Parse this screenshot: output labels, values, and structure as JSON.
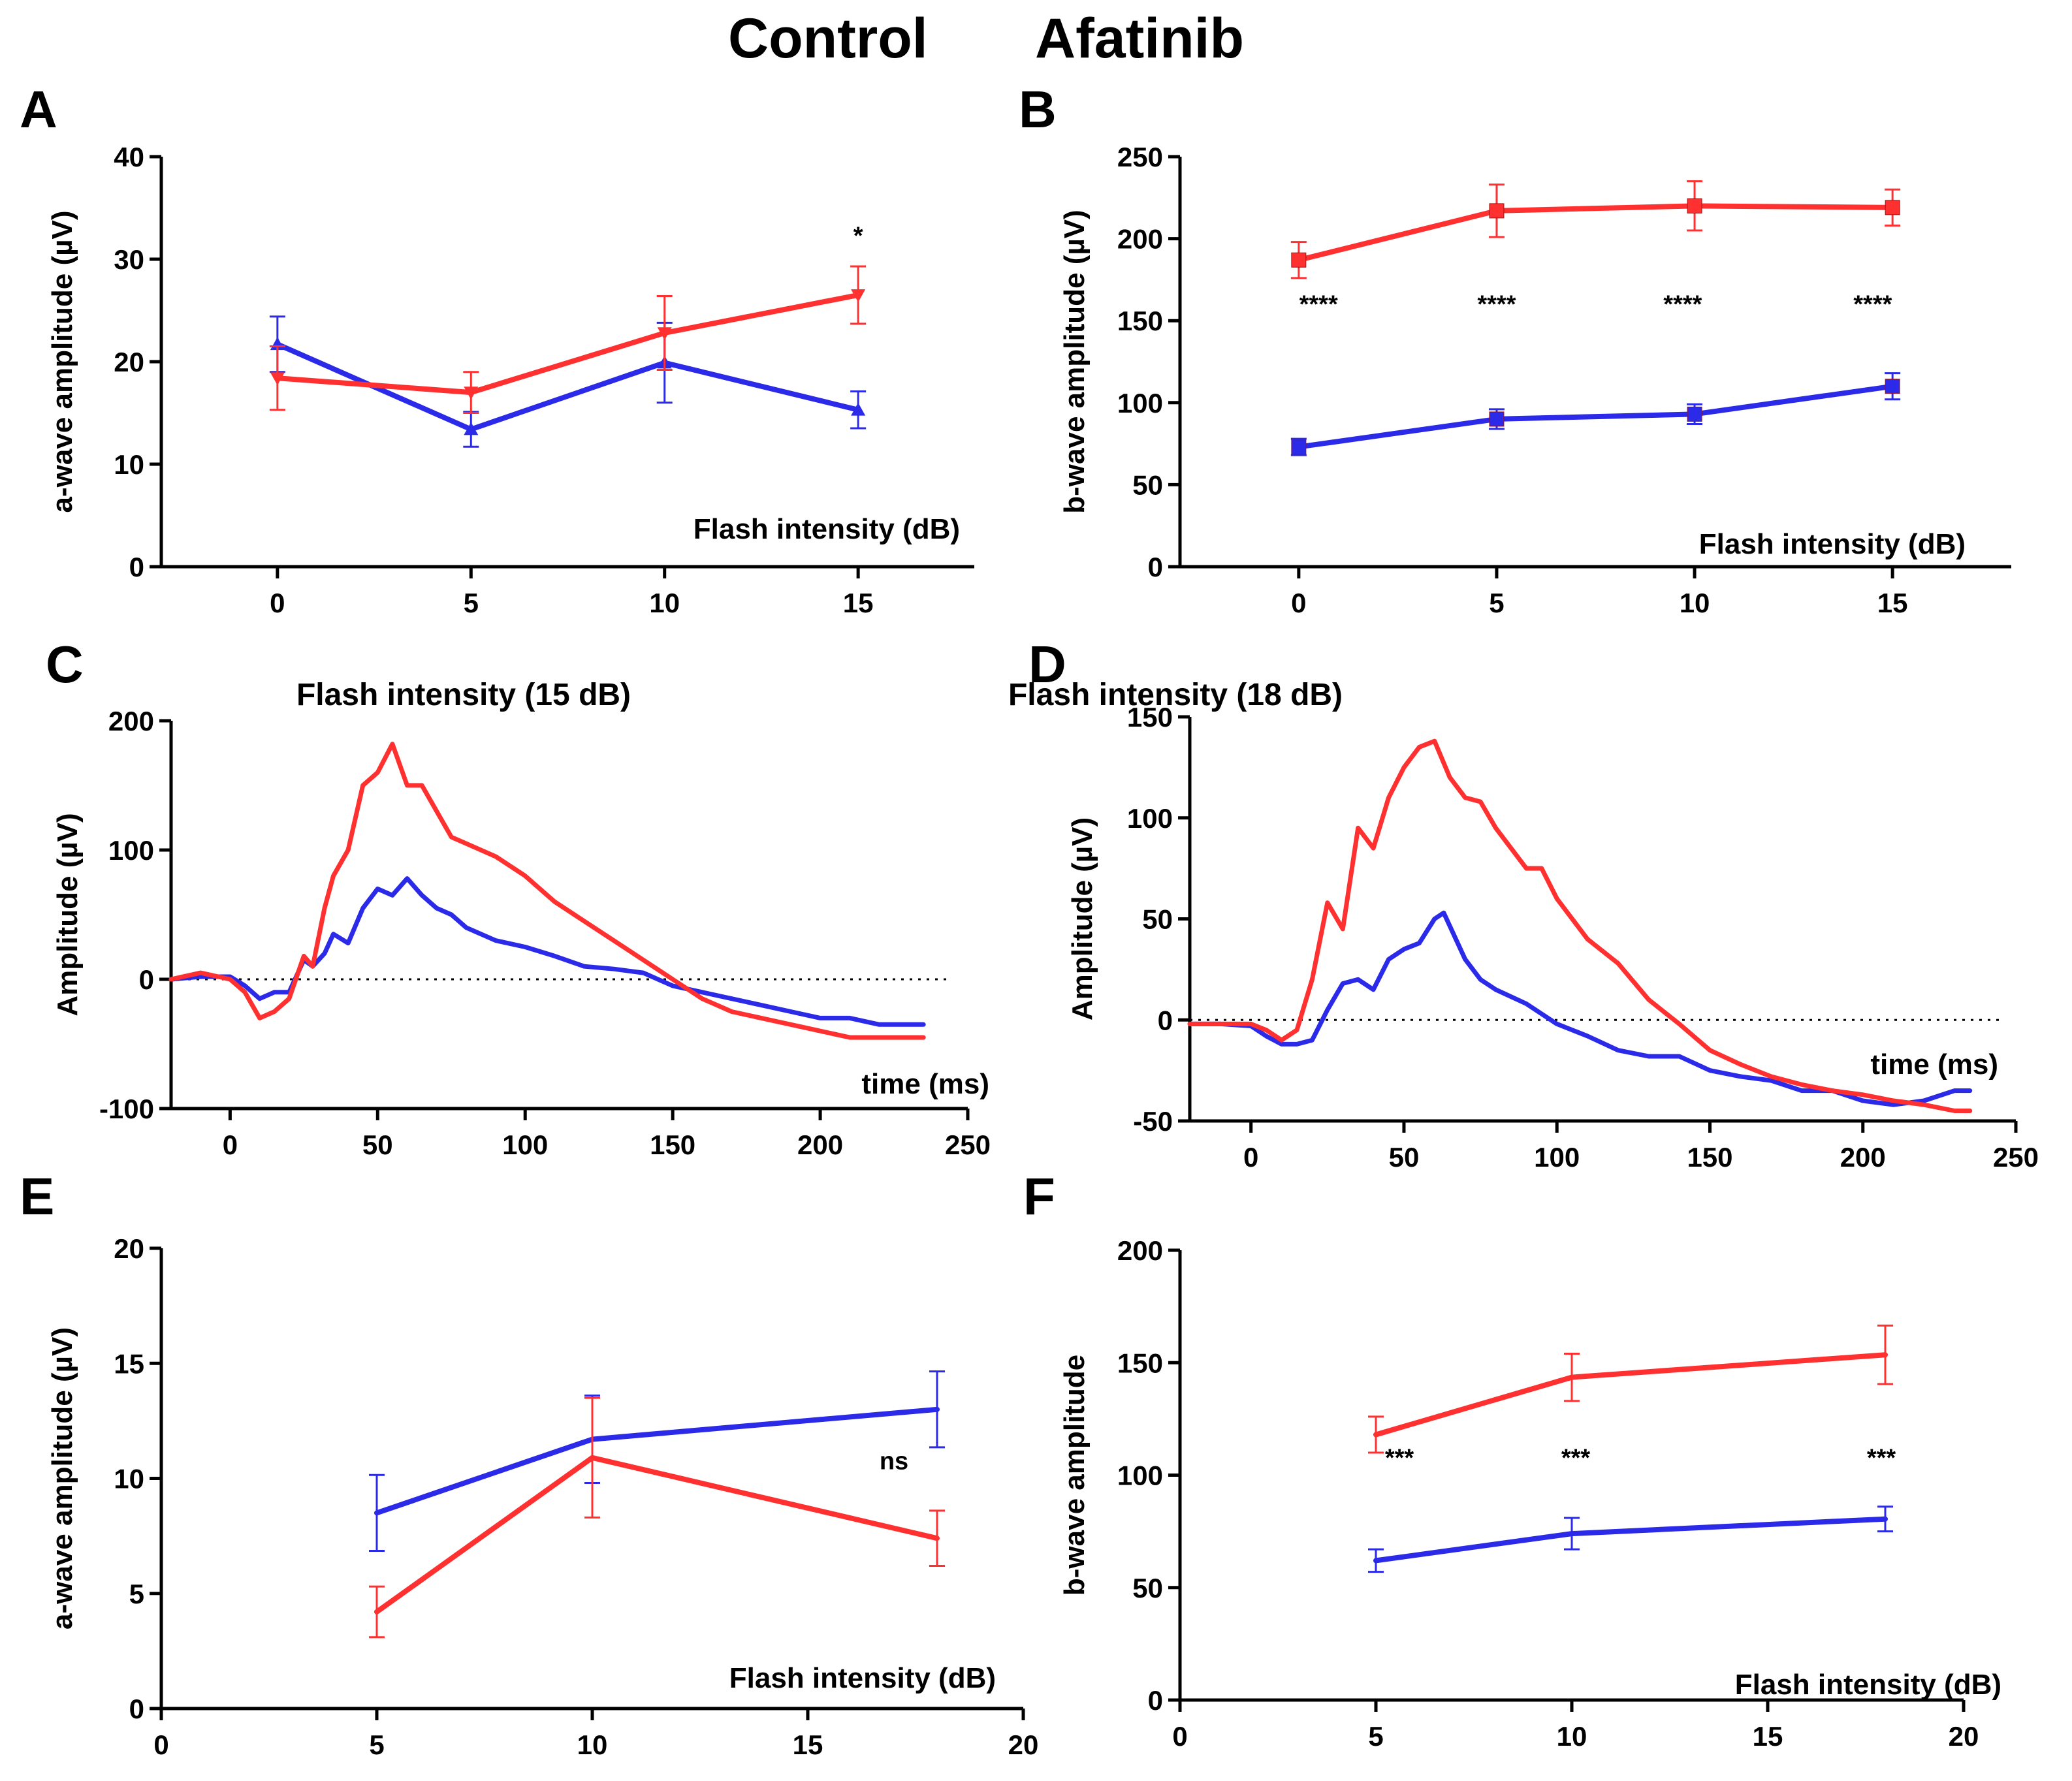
{
  "legend": {
    "control": "Control",
    "afatinib": "Afatinib"
  },
  "colors": {
    "control": "#2a2ae8",
    "afatinib": "#ff3030",
    "axis": "#000000"
  },
  "chart_data": [
    {
      "id": "A",
      "type": "line",
      "panel_label": "A",
      "title": "",
      "xlabel": "Flash intensity (dB)",
      "ylabel": "a-wave amplitude (µV)",
      "xlim": [
        -3,
        18
      ],
      "ylim": [
        0,
        40
      ],
      "xticks": [
        0,
        5,
        10,
        15
      ],
      "yticks": [
        0,
        10,
        20,
        30,
        40
      ],
      "x": [
        0,
        5,
        10,
        15
      ],
      "series": [
        {
          "name": "Control",
          "marker": "triangle-up",
          "values": [
            21.7,
            13.4,
            19.9,
            15.3
          ],
          "errors": [
            2.7,
            1.7,
            3.9,
            1.8
          ]
        },
        {
          "name": "Afatinib",
          "marker": "triangle-down",
          "values": [
            18.4,
            17.0,
            22.8,
            26.5
          ],
          "errors": [
            3.1,
            2.0,
            3.6,
            2.8
          ]
        }
      ],
      "annotations": [
        {
          "text": "*",
          "x": 15,
          "y": 31.5
        }
      ]
    },
    {
      "id": "B",
      "type": "line",
      "panel_label": "B",
      "title": "",
      "xlabel": "Flash intensity (dB)",
      "ylabel": "b-wave amplitude (µV)",
      "xlim": [
        -3,
        18
      ],
      "ylim": [
        0,
        250
      ],
      "xticks": [
        0,
        5,
        10,
        15
      ],
      "yticks": [
        0,
        50,
        100,
        150,
        200,
        250
      ],
      "x": [
        0,
        5,
        10,
        15
      ],
      "series": [
        {
          "name": "Control",
          "marker": "square",
          "values": [
            73,
            90,
            93,
            110
          ],
          "errors": [
            5,
            6,
            6,
            8
          ]
        },
        {
          "name": "Afatinib",
          "marker": "square",
          "values": [
            187,
            217,
            220,
            219
          ],
          "errors": [
            11,
            16,
            15,
            11
          ]
        }
      ],
      "annotations": [
        {
          "text": "****",
          "x": 0.5,
          "y": 155
        },
        {
          "text": "****",
          "x": 5,
          "y": 155
        },
        {
          "text": "****",
          "x": 9.7,
          "y": 155
        },
        {
          "text": "****",
          "x": 14.5,
          "y": 155
        }
      ]
    },
    {
      "id": "C",
      "type": "line",
      "panel_label": "C",
      "title": "Flash intensity (15 dB)",
      "xlabel": "time (ms)",
      "ylabel": "Amplitude (µV)",
      "xlim": [
        -20,
        250
      ],
      "ylim": [
        -100,
        200
      ],
      "xticks": [
        0,
        50,
        100,
        150,
        200,
        250
      ],
      "yticks": [
        -100,
        0,
        100,
        200
      ],
      "zero_line": true,
      "series": [
        {
          "name": "Control",
          "x": [
            -20,
            -10,
            0,
            5,
            10,
            15,
            20,
            25,
            28,
            32,
            35,
            40,
            45,
            50,
            55,
            60,
            65,
            70,
            75,
            80,
            85,
            90,
            100,
            110,
            120,
            130,
            140,
            150,
            160,
            170,
            180,
            190,
            200,
            210,
            220,
            230,
            235
          ],
          "values": [
            0,
            2,
            2,
            -5,
            -15,
            -10,
            -10,
            15,
            10,
            20,
            35,
            28,
            55,
            70,
            65,
            78,
            65,
            55,
            50,
            40,
            35,
            30,
            25,
            18,
            10,
            8,
            5,
            -5,
            -10,
            -15,
            -20,
            -25,
            -30,
            -30,
            -35,
            -35,
            -35
          ]
        },
        {
          "name": "Afatinib",
          "x": [
            -20,
            -10,
            0,
            5,
            10,
            15,
            20,
            25,
            28,
            32,
            35,
            40,
            45,
            50,
            55,
            60,
            65,
            70,
            75,
            80,
            90,
            100,
            110,
            120,
            130,
            140,
            150,
            160,
            170,
            180,
            190,
            200,
            210,
            220,
            230,
            235
          ],
          "values": [
            0,
            5,
            0,
            -10,
            -30,
            -25,
            -15,
            18,
            10,
            55,
            80,
            100,
            150,
            160,
            182,
            150,
            150,
            130,
            110,
            105,
            95,
            80,
            60,
            45,
            30,
            15,
            0,
            -15,
            -25,
            -30,
            -35,
            -40,
            -45,
            -45,
            -45,
            -45
          ]
        }
      ]
    },
    {
      "id": "D",
      "type": "line",
      "panel_label": "D",
      "title": "Flash intensity (18 dB)",
      "xlabel": "time (ms)",
      "ylabel": "Amplitude (µV)",
      "xlim": [
        -20,
        250
      ],
      "ylim": [
        -50,
        150
      ],
      "xticks": [
        0,
        50,
        100,
        150,
        200,
        250
      ],
      "yticks": [
        -50,
        0,
        50,
        100,
        150
      ],
      "zero_line": true,
      "series": [
        {
          "name": "Control",
          "x": [
            -20,
            -10,
            0,
            5,
            10,
            15,
            20,
            25,
            30,
            35,
            40,
            45,
            50,
            55,
            60,
            63,
            70,
            75,
            80,
            90,
            100,
            110,
            120,
            130,
            140,
            150,
            160,
            170,
            180,
            190,
            200,
            210,
            220,
            230,
            235
          ],
          "values": [
            -2,
            -2,
            -3,
            -8,
            -12,
            -12,
            -10,
            5,
            18,
            20,
            15,
            30,
            35,
            38,
            50,
            53,
            30,
            20,
            15,
            8,
            -2,
            -8,
            -15,
            -18,
            -18,
            -25,
            -28,
            -30,
            -35,
            -35,
            -40,
            -42,
            -40,
            -35,
            -35
          ]
        },
        {
          "name": "Afatinib",
          "x": [
            -20,
            -10,
            0,
            5,
            10,
            15,
            20,
            25,
            30,
            35,
            40,
            45,
            50,
            55,
            60,
            65,
            70,
            75,
            80,
            90,
            95,
            100,
            110,
            120,
            130,
            140,
            150,
            160,
            170,
            180,
            190,
            200,
            210,
            220,
            230,
            235
          ],
          "values": [
            -2,
            -2,
            -2,
            -5,
            -10,
            -5,
            20,
            58,
            45,
            95,
            85,
            110,
            125,
            135,
            138,
            120,
            110,
            108,
            95,
            75,
            75,
            60,
            40,
            28,
            10,
            -2,
            -15,
            -22,
            -28,
            -32,
            -35,
            -37,
            -40,
            -42,
            -45,
            -45
          ]
        }
      ]
    },
    {
      "id": "E",
      "type": "line",
      "panel_label": "E",
      "title": "",
      "xlabel": "Flash intensity (dB)",
      "ylabel": "a-wave amplitude (µV)",
      "xlim": [
        0,
        20
      ],
      "ylim": [
        0,
        20
      ],
      "xticks": [
        0,
        5,
        10,
        15,
        20
      ],
      "yticks": [
        0,
        5,
        10,
        15,
        20
      ],
      "x": [
        5,
        10,
        18
      ],
      "series": [
        {
          "name": "Control",
          "values": [
            8.5,
            11.7,
            13.0
          ],
          "errors": [
            1.65,
            1.9,
            1.65
          ]
        },
        {
          "name": "Afatinib",
          "values": [
            4.2,
            10.9,
            7.4
          ],
          "errors": [
            1.1,
            2.6,
            1.2
          ]
        }
      ],
      "annotations": [
        {
          "text": "ns",
          "x": 17,
          "y": 10.4
        }
      ]
    },
    {
      "id": "F",
      "type": "line",
      "panel_label": "F",
      "title": "",
      "xlabel": "Flash intensity (dB)",
      "ylabel": "b-wave amplitude",
      "xlim": [
        0,
        20
      ],
      "ylim": [
        0,
        200
      ],
      "xticks": [
        0,
        5,
        10,
        15,
        20
      ],
      "yticks": [
        0,
        50,
        100,
        150,
        200
      ],
      "x": [
        5,
        10,
        18
      ],
      "series": [
        {
          "name": "Control",
          "values": [
            62,
            74,
            80.5
          ],
          "errors": [
            5,
            7,
            5.5
          ]
        },
        {
          "name": "Afatinib",
          "values": [
            118,
            143.5,
            153.5
          ],
          "errors": [
            8,
            10.5,
            13
          ]
        }
      ],
      "annotations": [
        {
          "text": "***",
          "x": 5.6,
          "y": 104
        },
        {
          "text": "***",
          "x": 10.1,
          "y": 104
        },
        {
          "text": "***",
          "x": 17.9,
          "y": 104
        }
      ]
    }
  ]
}
